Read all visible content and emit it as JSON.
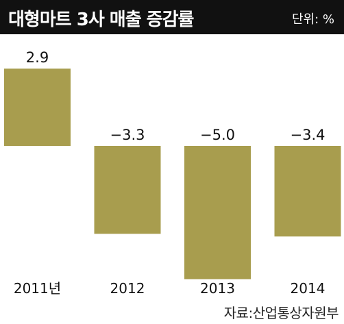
{
  "header": {
    "title": "대형마트 3사 매출 증감률",
    "unit": "단위: %"
  },
  "footer": {
    "source": "자료:산업통상자원부"
  },
  "colors": {
    "bar": "#a89d4e",
    "header_bg": "#111111"
  },
  "chart_data": {
    "type": "bar",
    "title": "대형마트 3사 매출 증감률",
    "unit": "%",
    "categories": [
      "2011년",
      "2012",
      "2013",
      "2014"
    ],
    "values": [
      2.9,
      -3.3,
      -5.0,
      -3.4
    ],
    "value_labels": [
      "2.9",
      "−3.3",
      "−5.0",
      "−3.4"
    ],
    "xlabel": "",
    "ylabel": "",
    "grid": false,
    "legend": "none"
  }
}
